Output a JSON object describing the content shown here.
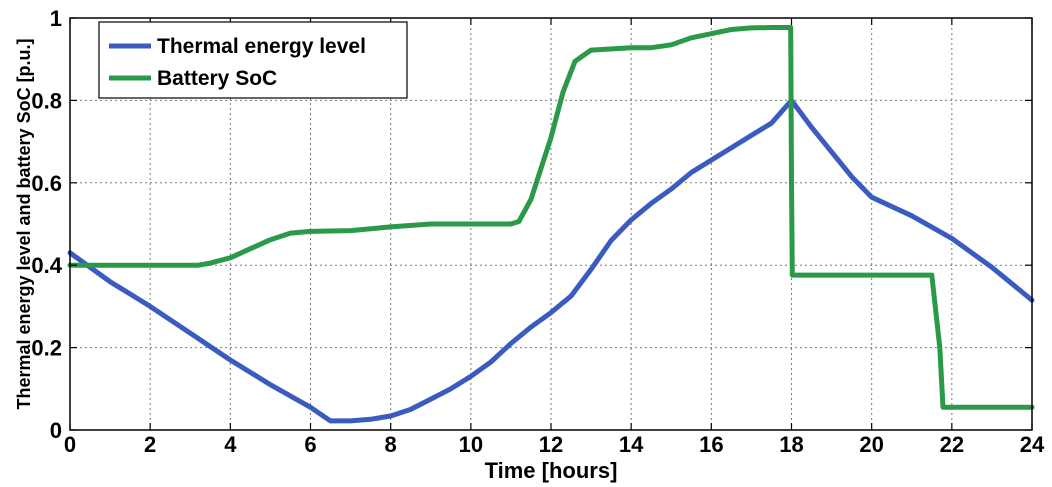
{
  "chart_data": {
    "type": "line",
    "xlabel": "Time [hours]",
    "ylabel": "Thermal energy level and battery SoC [p.u.]",
    "xlim": [
      0,
      24
    ],
    "ylim": [
      0,
      1
    ],
    "xticks": [
      0,
      2,
      4,
      6,
      8,
      10,
      12,
      14,
      16,
      18,
      20,
      22,
      24
    ],
    "yticks": [
      0,
      0.2,
      0.4,
      0.6,
      0.8,
      1
    ],
    "ytick_labels": [
      "0",
      "0.2",
      "0.4",
      "0.6",
      "0.8",
      "1"
    ],
    "grid": true,
    "legend_position": "top-left",
    "series": [
      {
        "name": "Thermal energy level",
        "color": "#3a5bbf",
        "x": [
          0,
          1,
          2,
          3,
          4,
          5,
          6,
          6.5,
          7,
          7.5,
          8,
          8.5,
          9,
          9.5,
          10,
          10.5,
          11,
          11.5,
          12,
          12.5,
          13,
          13.5,
          14,
          14.5,
          15,
          15.5,
          16,
          16.5,
          17,
          17.5,
          18,
          18.5,
          19,
          19.5,
          20,
          21,
          22,
          23,
          24
        ],
        "y": [
          0.43,
          0.36,
          0.3,
          0.235,
          0.17,
          0.11,
          0.055,
          0.022,
          0.022,
          0.026,
          0.034,
          0.05,
          0.075,
          0.1,
          0.13,
          0.165,
          0.21,
          0.25,
          0.285,
          0.325,
          0.39,
          0.46,
          0.51,
          0.55,
          0.585,
          0.625,
          0.655,
          0.685,
          0.715,
          0.745,
          0.8,
          0.735,
          0.675,
          0.615,
          0.565,
          0.52,
          0.465,
          0.395,
          0.315
        ]
      },
      {
        "name": "Battery SoC",
        "color": "#2a9a48",
        "x": [
          0,
          1,
          2,
          3,
          3.2,
          3.5,
          4,
          4.5,
          5,
          5.5,
          6,
          7,
          8,
          9,
          10,
          11,
          11.2,
          11.5,
          12,
          12.3,
          12.6,
          13,
          14,
          14.5,
          15,
          15.5,
          16,
          16.5,
          17,
          17.5,
          17.98,
          18,
          18.02,
          19,
          20,
          21,
          21.5,
          21.7,
          21.78,
          22,
          23,
          24
        ],
        "y": [
          0.4,
          0.4,
          0.4,
          0.4,
          0.4,
          0.405,
          0.418,
          0.44,
          0.462,
          0.478,
          0.482,
          0.484,
          0.493,
          0.5,
          0.5,
          0.5,
          0.506,
          0.56,
          0.71,
          0.82,
          0.895,
          0.922,
          0.928,
          0.928,
          0.935,
          0.952,
          0.962,
          0.972,
          0.976,
          0.977,
          0.977,
          0.6,
          0.376,
          0.376,
          0.376,
          0.376,
          0.376,
          0.2,
          0.055,
          0.055,
          0.055,
          0.055
        ]
      }
    ]
  }
}
